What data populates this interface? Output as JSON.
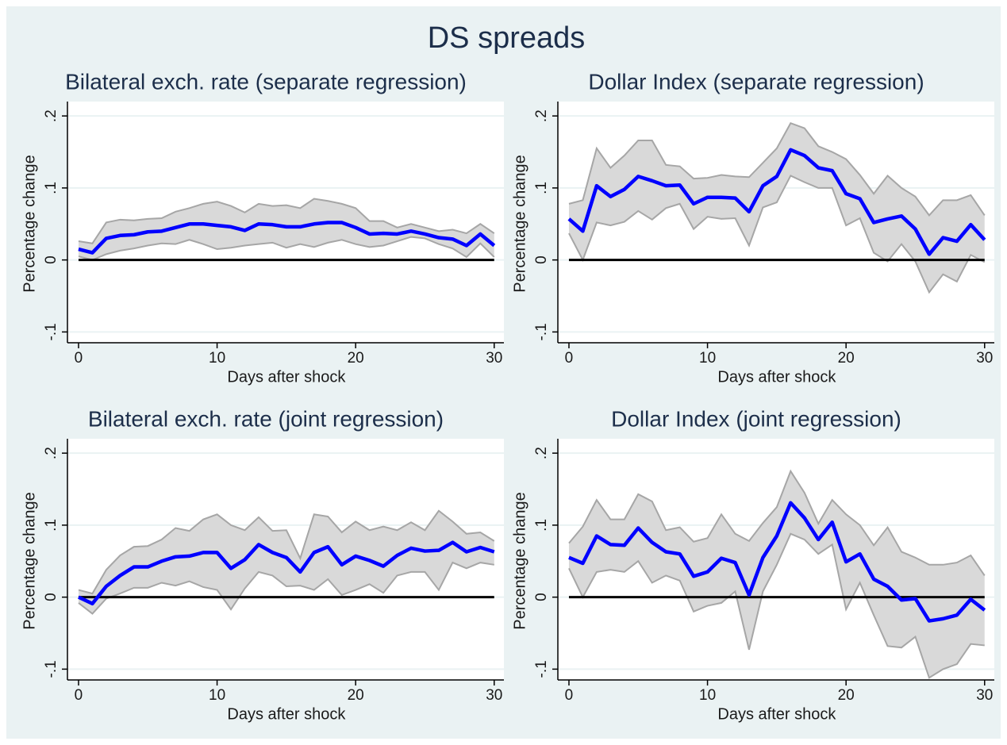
{
  "title": "DS spreads",
  "chart_data": [
    {
      "type": "line",
      "title": "Bilateral exch. rate (separate regression)",
      "x_label": "Days after shock",
      "y_label": "Percentage change",
      "x": [
        0,
        1,
        2,
        3,
        4,
        5,
        6,
        7,
        8,
        9,
        10,
        11,
        12,
        13,
        14,
        15,
        16,
        17,
        18,
        19,
        20,
        21,
        22,
        23,
        24,
        25,
        26,
        27,
        28,
        29,
        30
      ],
      "values": [
        0.015,
        0.01,
        0.03,
        0.034,
        0.035,
        0.039,
        0.04,
        0.045,
        0.05,
        0.05,
        0.048,
        0.046,
        0.041,
        0.05,
        0.049,
        0.046,
        0.046,
        0.05,
        0.052,
        0.052,
        0.045,
        0.036,
        0.037,
        0.036,
        0.04,
        0.036,
        0.031,
        0.029,
        0.02,
        0.036,
        0.02
      ],
      "upper": [
        0.026,
        0.023,
        0.052,
        0.056,
        0.055,
        0.057,
        0.058,
        0.067,
        0.072,
        0.078,
        0.081,
        0.075,
        0.066,
        0.078,
        0.075,
        0.076,
        0.072,
        0.085,
        0.082,
        0.078,
        0.072,
        0.054,
        0.054,
        0.045,
        0.05,
        0.045,
        0.04,
        0.042,
        0.037,
        0.05,
        0.037
      ],
      "lower": [
        0.005,
        0.0,
        0.008,
        0.013,
        0.016,
        0.02,
        0.023,
        0.022,
        0.028,
        0.022,
        0.015,
        0.017,
        0.02,
        0.022,
        0.024,
        0.017,
        0.022,
        0.018,
        0.024,
        0.028,
        0.022,
        0.018,
        0.02,
        0.026,
        0.032,
        0.03,
        0.022,
        0.016,
        0.004,
        0.023,
        0.004
      ],
      "color": "#0000ff",
      "band_color": "#d9d9d9",
      "band_line_color": "#a6a6a6",
      "reference_line": 0,
      "reference_color": "#000000",
      "xlim": [
        -0.8,
        30.7
      ],
      "ylim": [
        -0.115,
        0.22
      ],
      "xticks": [
        0,
        10,
        20,
        30
      ],
      "yticks": [
        {
          "value": -0.1,
          "label": "-.1"
        },
        0,
        {
          "value": 0.1,
          "label": ".1"
        },
        {
          "value": 0.2,
          "label": ".2"
        }
      ],
      "grid": true
    },
    {
      "type": "line",
      "title": "Dollar Index (separate regression)",
      "x_label": "Days after shock",
      "y_label": "Percentage change",
      "x": [
        0,
        1,
        2,
        3,
        4,
        5,
        6,
        7,
        8,
        9,
        10,
        11,
        12,
        13,
        14,
        15,
        16,
        17,
        18,
        19,
        20,
        21,
        22,
        23,
        24,
        25,
        26,
        27,
        28,
        29,
        30
      ],
      "values": [
        0.057,
        0.04,
        0.103,
        0.088,
        0.098,
        0.116,
        0.11,
        0.103,
        0.104,
        0.078,
        0.087,
        0.087,
        0.086,
        0.067,
        0.103,
        0.116,
        0.153,
        0.145,
        0.128,
        0.124,
        0.092,
        0.085,
        0.052,
        0.057,
        0.061,
        0.043,
        0.008,
        0.031,
        0.026,
        0.049,
        0.028
      ],
      "upper": [
        0.078,
        0.083,
        0.155,
        0.128,
        0.145,
        0.166,
        0.166,
        0.132,
        0.13,
        0.113,
        0.114,
        0.118,
        0.116,
        0.115,
        0.135,
        0.155,
        0.19,
        0.183,
        0.158,
        0.15,
        0.14,
        0.118,
        0.092,
        0.117,
        0.1,
        0.088,
        0.062,
        0.083,
        0.083,
        0.09,
        0.062
      ],
      "lower": [
        0.037,
        0.0,
        0.052,
        0.048,
        0.053,
        0.068,
        0.056,
        0.072,
        0.078,
        0.043,
        0.06,
        0.057,
        0.058,
        0.02,
        0.073,
        0.08,
        0.117,
        0.108,
        0.1,
        0.1,
        0.048,
        0.058,
        0.01,
        -0.002,
        0.022,
        -0.002,
        -0.045,
        -0.02,
        -0.03,
        0.007,
        -0.003
      ],
      "color": "#0000ff",
      "band_color": "#d9d9d9",
      "band_line_color": "#a6a6a6",
      "reference_line": 0,
      "reference_color": "#000000",
      "xlim": [
        -0.8,
        30.7
      ],
      "ylim": [
        -0.115,
        0.22
      ],
      "xticks": [
        0,
        10,
        20,
        30
      ],
      "yticks": [
        {
          "value": -0.1,
          "label": "-.1"
        },
        0,
        {
          "value": 0.1,
          "label": ".1"
        },
        {
          "value": 0.2,
          "label": ".2"
        }
      ],
      "grid": true
    },
    {
      "type": "line",
      "title": "Bilateral exch. rate (joint regression)",
      "x_label": "Days after shock",
      "y_label": "Percentage change",
      "x": [
        0,
        1,
        2,
        3,
        4,
        5,
        6,
        7,
        8,
        9,
        10,
        11,
        12,
        13,
        14,
        15,
        16,
        17,
        18,
        19,
        20,
        21,
        22,
        23,
        24,
        25,
        26,
        27,
        28,
        29,
        30
      ],
      "values": [
        0.0,
        -0.009,
        0.015,
        0.03,
        0.042,
        0.042,
        0.05,
        0.056,
        0.057,
        0.062,
        0.062,
        0.04,
        0.052,
        0.073,
        0.062,
        0.055,
        0.035,
        0.062,
        0.07,
        0.045,
        0.057,
        0.051,
        0.043,
        0.058,
        0.068,
        0.064,
        0.065,
        0.076,
        0.063,
        0.069,
        0.063
      ],
      "upper": [
        0.01,
        0.005,
        0.038,
        0.058,
        0.07,
        0.071,
        0.08,
        0.096,
        0.092,
        0.108,
        0.115,
        0.1,
        0.093,
        0.111,
        0.092,
        0.093,
        0.054,
        0.115,
        0.112,
        0.09,
        0.105,
        0.093,
        0.098,
        0.093,
        0.104,
        0.093,
        0.12,
        0.105,
        0.088,
        0.09,
        0.078
      ],
      "lower": [
        -0.008,
        -0.023,
        -0.002,
        0.005,
        0.013,
        0.013,
        0.02,
        0.016,
        0.022,
        0.014,
        0.01,
        -0.017,
        0.012,
        0.035,
        0.03,
        0.015,
        0.016,
        0.01,
        0.025,
        0.003,
        0.01,
        0.018,
        0.006,
        0.03,
        0.035,
        0.035,
        0.01,
        0.048,
        0.04,
        0.048,
        0.045
      ],
      "color": "#0000ff",
      "band_color": "#d9d9d9",
      "band_line_color": "#a6a6a6",
      "reference_line": 0,
      "reference_color": "#000000",
      "xlim": [
        -0.8,
        30.7
      ],
      "ylim": [
        -0.115,
        0.22
      ],
      "xticks": [
        0,
        10,
        20,
        30
      ],
      "yticks": [
        {
          "value": -0.1,
          "label": "-.1"
        },
        0,
        {
          "value": 0.1,
          "label": ".1"
        },
        {
          "value": 0.2,
          "label": ".2"
        }
      ],
      "grid": true
    },
    {
      "type": "line",
      "title": "Dollar Index (joint regression)",
      "x_label": "Days after shock",
      "y_label": "Percentage change",
      "x": [
        0,
        1,
        2,
        3,
        4,
        5,
        6,
        7,
        8,
        9,
        10,
        11,
        12,
        13,
        14,
        15,
        16,
        17,
        18,
        19,
        20,
        21,
        22,
        23,
        24,
        25,
        26,
        27,
        28,
        29,
        30
      ],
      "values": [
        0.055,
        0.047,
        0.085,
        0.073,
        0.072,
        0.096,
        0.076,
        0.063,
        0.06,
        0.029,
        0.035,
        0.054,
        0.048,
        0.003,
        0.055,
        0.085,
        0.131,
        0.11,
        0.08,
        0.104,
        0.049,
        0.06,
        0.025,
        0.015,
        -0.004,
        -0.002,
        -0.033,
        -0.03,
        -0.025,
        -0.003,
        -0.018
      ],
      "upper": [
        0.075,
        0.098,
        0.135,
        0.108,
        0.108,
        0.143,
        0.133,
        0.093,
        0.097,
        0.077,
        0.082,
        0.115,
        0.088,
        0.078,
        0.103,
        0.125,
        0.175,
        0.145,
        0.102,
        0.135,
        0.115,
        0.1,
        0.072,
        0.097,
        0.063,
        0.055,
        0.045,
        0.045,
        0.048,
        0.058,
        0.03
      ],
      "lower": [
        0.04,
        0.0,
        0.035,
        0.038,
        0.035,
        0.05,
        0.02,
        0.03,
        0.023,
        -0.02,
        -0.012,
        -0.008,
        0.008,
        -0.073,
        0.008,
        0.045,
        0.088,
        0.08,
        0.06,
        0.073,
        -0.017,
        0.02,
        -0.025,
        -0.068,
        -0.07,
        -0.055,
        -0.112,
        -0.1,
        -0.093,
        -0.065,
        -0.067
      ],
      "color": "#0000ff",
      "band_color": "#d9d9d9",
      "band_line_color": "#a6a6a6",
      "reference_line": 0,
      "reference_color": "#000000",
      "xlim": [
        -0.8,
        30.7
      ],
      "ylim": [
        -0.115,
        0.22
      ],
      "xticks": [
        0,
        10,
        20,
        30
      ],
      "yticks": [
        {
          "value": -0.1,
          "label": "-.1"
        },
        0,
        {
          "value": 0.1,
          "label": ".1"
        },
        {
          "value": 0.2,
          "label": ".2"
        }
      ],
      "grid": true
    }
  ]
}
